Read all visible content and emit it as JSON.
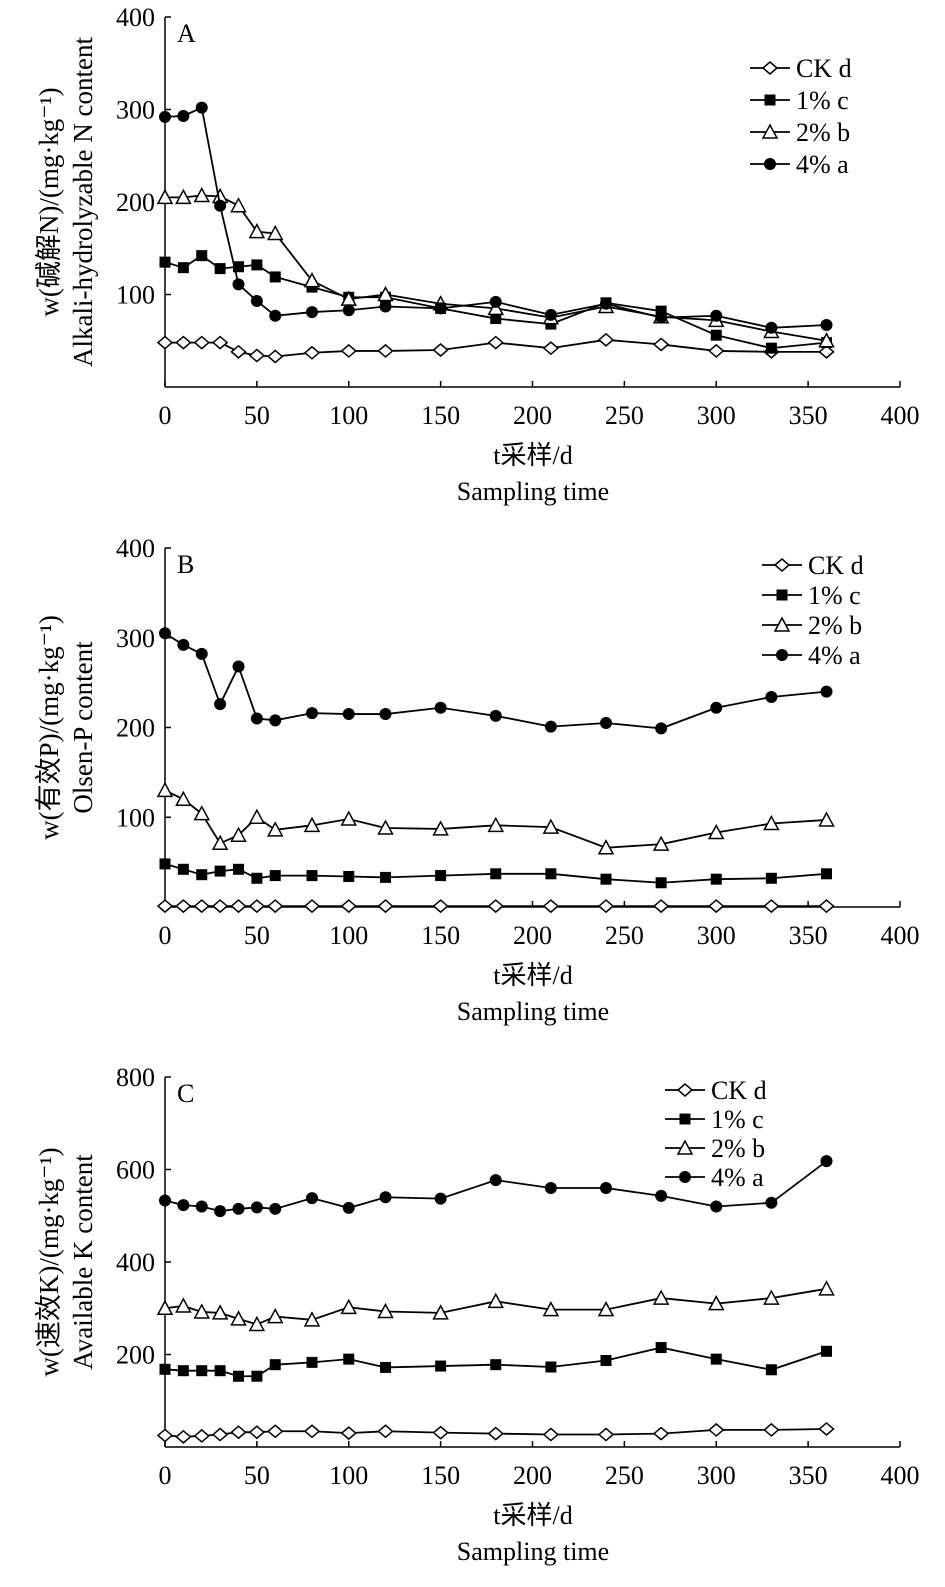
{
  "chart_data": [
    {
      "type": "line",
      "panel_label": "A",
      "ylabel_line1": "w(碱解N)/(mg·kg⁻¹)",
      "ylabel_line2": "Alkali-hydrolyzable N content",
      "xlabel_line1": "t采样/d",
      "xlabel_line2": "Sampling time",
      "xlim": [
        0,
        400
      ],
      "ylim": [
        0,
        400
      ],
      "xticks": [
        0,
        50,
        100,
        150,
        200,
        250,
        300,
        350,
        400
      ],
      "yticks": [
        100,
        200,
        300,
        400
      ],
      "legend_position": "top-right",
      "x": [
        0,
        10,
        20,
        30,
        40,
        50,
        60,
        80,
        100,
        120,
        150,
        180,
        210,
        240,
        270,
        300,
        330,
        360
      ],
      "series": [
        {
          "name": "CK d",
          "marker": "diamond",
          "values": [
            48,
            48,
            48,
            48,
            38,
            34,
            33,
            37,
            39,
            39,
            40,
            48,
            42,
            51,
            46,
            39,
            38,
            38
          ]
        },
        {
          "name": "1% c",
          "marker": "square",
          "values": [
            135,
            129,
            142,
            128,
            130,
            132,
            119,
            108,
            97,
            97,
            85,
            74,
            68,
            91,
            82,
            56,
            42,
            48
          ]
        },
        {
          "name": "2% b",
          "marker": "triangle",
          "values": [
            205,
            205,
            207,
            206,
            196,
            168,
            166,
            115,
            95,
            100,
            90,
            85,
            75,
            87,
            76,
            72,
            60,
            50
          ]
        },
        {
          "name": "4% a",
          "marker": "circle",
          "values": [
            292,
            293,
            302,
            196,
            111,
            93,
            77,
            81,
            83,
            87,
            85,
            92,
            78,
            90,
            75,
            77,
            64,
            67
          ]
        }
      ]
    },
    {
      "type": "line",
      "panel_label": "B",
      "ylabel_line1": "w(有效P)/(mg·kg⁻¹)",
      "ylabel_line2": "Olsen-P content",
      "xlabel_line1": "t采样/d",
      "xlabel_line2": "Sampling time",
      "xlim": [
        0,
        400
      ],
      "ylim": [
        0,
        400
      ],
      "xticks": [
        0,
        50,
        100,
        150,
        200,
        250,
        300,
        350,
        400
      ],
      "yticks": [
        100,
        200,
        300,
        400
      ],
      "legend_position": "top-right",
      "x": [
        0,
        10,
        20,
        30,
        40,
        50,
        60,
        80,
        100,
        120,
        150,
        180,
        210,
        240,
        270,
        300,
        330,
        360
      ],
      "series": [
        {
          "name": "CK d",
          "marker": "diamond",
          "values": [
            1,
            1,
            1,
            1,
            1,
            1,
            1,
            1,
            1,
            1,
            1,
            1,
            1,
            1,
            1,
            1,
            1,
            1
          ]
        },
        {
          "name": "1% c",
          "marker": "square",
          "values": [
            48,
            42,
            36,
            40,
            42,
            32,
            35,
            35,
            34,
            33,
            35,
            37,
            37,
            31,
            27,
            31,
            32,
            37
          ]
        },
        {
          "name": "2% b",
          "marker": "triangle",
          "values": [
            130,
            120,
            104,
            71,
            80,
            100,
            86,
            91,
            98,
            88,
            87,
            91,
            89,
            66,
            70,
            83,
            93,
            97
          ]
        },
        {
          "name": "4% a",
          "marker": "circle",
          "values": [
            305,
            292,
            282,
            226,
            268,
            210,
            208,
            216,
            215,
            215,
            222,
            213,
            201,
            205,
            199,
            222,
            234,
            240
          ]
        }
      ]
    },
    {
      "type": "line",
      "panel_label": "C",
      "ylabel_line1": "w(速效K)/(mg·kg⁻¹)",
      "ylabel_line2": "Available K content",
      "xlabel_line1": "t采样/d",
      "xlabel_line2": "Sampling time",
      "xlim": [
        0,
        400
      ],
      "ylim": [
        0,
        800
      ],
      "xticks": [
        0,
        50,
        100,
        150,
        200,
        250,
        300,
        350,
        400
      ],
      "yticks": [
        200,
        400,
        600,
        800
      ],
      "legend_position": "top-right",
      "x": [
        0,
        10,
        20,
        30,
        40,
        50,
        60,
        80,
        100,
        120,
        150,
        180,
        210,
        240,
        270,
        300,
        330,
        360
      ],
      "series": [
        {
          "name": "CK d",
          "marker": "diamond",
          "values": [
            25,
            22,
            24,
            27,
            32,
            32,
            34,
            34,
            30,
            34,
            31,
            29,
            27,
            27,
            29,
            37,
            37,
            39
          ]
        },
        {
          "name": "1% c",
          "marker": "square",
          "values": [
            168,
            165,
            165,
            165,
            153,
            153,
            178,
            183,
            190,
            172,
            175,
            178,
            173,
            187,
            215,
            190,
            167,
            207
          ]
        },
        {
          "name": "2% b",
          "marker": "triangle",
          "values": [
            300,
            305,
            292,
            290,
            277,
            265,
            282,
            275,
            302,
            293,
            290,
            315,
            297,
            297,
            322,
            310,
            322,
            342
          ]
        },
        {
          "name": "4% a",
          "marker": "circle",
          "values": [
            533,
            523,
            520,
            510,
            515,
            518,
            515,
            538,
            517,
            540,
            537,
            577,
            560,
            560,
            543,
            520,
            528,
            618
          ]
        }
      ]
    }
  ]
}
